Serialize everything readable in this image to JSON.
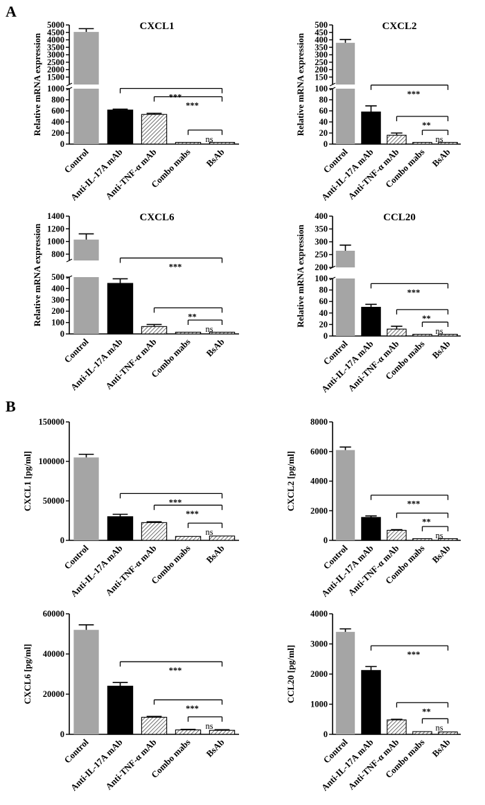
{
  "panel_labels": [
    "A",
    "B"
  ],
  "colors": {
    "Control": "#a5a5a5",
    "Anti-IL-17A mAb": "#000000",
    "Anti-TNF-α mAb": "hatch",
    "Combo mabs": "hatch",
    "BsAb": "hatch"
  },
  "chart_data": [
    {
      "type": "bar",
      "panel": "A",
      "title": "CXCL1",
      "categories": [
        "Control",
        "Anti-IL-17A mAb",
        "Anti-TNF-α mAb",
        "Combo mabs",
        "BsAb"
      ],
      "values": [
        4530,
        615,
        535,
        25,
        22
      ],
      "errors": [
        220,
        15,
        20,
        3,
        3
      ],
      "ylabel": "Relative mRNA expression",
      "y_axis_break": true,
      "lower_range": [
        0,
        1000
      ],
      "lower_ticks": [
        0,
        200,
        400,
        600,
        800,
        1000
      ],
      "upper_range": [
        1000,
        5000
      ],
      "upper_ticks": [
        1000,
        1500,
        2000,
        2500,
        3000,
        3500,
        4000,
        4500,
        5000
      ],
      "significance": [
        {
          "from": "Anti-IL-17A mAb",
          "to": "BsAb",
          "label": "***"
        },
        {
          "from": "Anti-TNF-α mAb",
          "to": "BsAb",
          "label": "***"
        },
        {
          "from": "Combo mabs",
          "to": "BsAb",
          "label": "ns"
        }
      ]
    },
    {
      "type": "bar",
      "panel": "A",
      "title": "CXCL2",
      "categories": [
        "Control",
        "Anti-IL-17A mAb",
        "Anti-TNF-α mAb",
        "Combo mabs",
        "BsAb"
      ],
      "values": [
        380,
        58,
        16,
        2,
        2
      ],
      "errors": [
        22,
        11,
        4,
        0.5,
        0.5
      ],
      "ylabel": "Relative mRNA expression",
      "y_axis_break": true,
      "lower_range": [
        0,
        100
      ],
      "lower_ticks": [
        0,
        20,
        40,
        60,
        80,
        100
      ],
      "upper_range": [
        100,
        500
      ],
      "upper_ticks": [
        100,
        150,
        200,
        250,
        300,
        350,
        400,
        450,
        500
      ],
      "significance": [
        {
          "from": "Anti-IL-17A mAb",
          "to": "BsAb",
          "label": "***"
        },
        {
          "from": "Anti-TNF-α mAb",
          "to": "BsAb",
          "label": "**"
        },
        {
          "from": "Combo mabs",
          "to": "BsAb",
          "label": "ns"
        }
      ]
    },
    {
      "type": "bar",
      "panel": "A",
      "title": "CXCL6",
      "categories": [
        "Control",
        "Anti-IL-17A mAb",
        "Anti-TNF-α mAb",
        "Combo mabs",
        "BsAb"
      ],
      "values": [
        1030,
        445,
        65,
        4,
        4
      ],
      "errors": [
        90,
        40,
        18,
        1,
        1
      ],
      "ylabel": "Relative mRNA expression",
      "y_axis_break": true,
      "lower_range": [
        0,
        500
      ],
      "lower_ticks": [
        0,
        100,
        200,
        300,
        400,
        500
      ],
      "upper_range": [
        700,
        1400
      ],
      "upper_ticks": [
        800,
        1000,
        1200,
        1400
      ],
      "significance": [
        {
          "from": "Anti-IL-17A mAb",
          "to": "BsAb",
          "label": "***"
        },
        {
          "from": "Anti-TNF-α mAb",
          "to": "BsAb",
          "label": "**"
        },
        {
          "from": "Combo mabs",
          "to": "BsAb",
          "label": "ns"
        }
      ]
    },
    {
      "type": "bar",
      "panel": "A",
      "title": "CCL20",
      "categories": [
        "Control",
        "Anti-IL-17A mAb",
        "Anti-TNF-α mAb",
        "Combo mabs",
        "BsAb"
      ],
      "values": [
        265,
        50,
        12,
        2,
        2
      ],
      "errors": [
        22,
        5,
        5,
        0.5,
        0.5
      ],
      "ylabel": "Relative mRNA expression",
      "y_axis_break": true,
      "lower_range": [
        0,
        100
      ],
      "lower_ticks": [
        0,
        20,
        40,
        60,
        80,
        100
      ],
      "upper_range": [
        200,
        400
      ],
      "upper_ticks": [
        200,
        250,
        300,
        350,
        400
      ],
      "significance": [
        {
          "from": "Anti-IL-17A mAb",
          "to": "BsAb",
          "label": "***"
        },
        {
          "from": "Anti-TNF-α mAb",
          "to": "BsAb",
          "label": "**"
        },
        {
          "from": "Combo mabs",
          "to": "BsAb",
          "label": "ns"
        }
      ]
    },
    {
      "type": "bar",
      "panel": "B",
      "title": "",
      "categories": [
        "Control",
        "Anti-IL-17A mAb",
        "Anti-TNF-α mAb",
        "Combo mabs",
        "BsAb"
      ],
      "values": [
        105000,
        30000,
        22500,
        5000,
        5500
      ],
      "errors": [
        4000,
        3000,
        1000,
        500,
        500
      ],
      "ylabel": "CXCL1 [pg/ml]",
      "ylim": [
        0,
        150000
      ],
      "yticks": [
        0,
        50000,
        100000,
        150000
      ],
      "significance": [
        {
          "from": "Anti-IL-17A mAb",
          "to": "BsAb",
          "label": "***"
        },
        {
          "from": "Anti-TNF-α mAb",
          "to": "BsAb",
          "label": "***"
        },
        {
          "from": "Combo mabs",
          "to": "BsAb",
          "label": "ns"
        }
      ]
    },
    {
      "type": "bar",
      "panel": "B",
      "title": "",
      "categories": [
        "Control",
        "Anti-IL-17A mAb",
        "Anti-TNF-α mAb",
        "Combo mabs",
        "BsAb"
      ],
      "values": [
        6100,
        1550,
        680,
        40,
        40
      ],
      "errors": [
        200,
        100,
        40,
        10,
        10
      ],
      "ylabel": "CXCL2 [pg/ml]",
      "ylim": [
        0,
        8000
      ],
      "yticks": [
        0,
        2000,
        4000,
        6000,
        8000
      ],
      "significance": [
        {
          "from": "Anti-IL-17A mAb",
          "to": "BsAb",
          "label": "***"
        },
        {
          "from": "Anti-TNF-α mAb",
          "to": "BsAb",
          "label": "**"
        },
        {
          "from": "Combo mabs",
          "to": "BsAb",
          "label": "ns"
        }
      ]
    },
    {
      "type": "bar",
      "panel": "B",
      "title": "",
      "categories": [
        "Control",
        "Anti-IL-17A mAb",
        "Anti-TNF-α mAb",
        "Combo mabs",
        "BsAb"
      ],
      "values": [
        52000,
        24000,
        8500,
        2200,
        2000
      ],
      "errors": [
        2500,
        1800,
        400,
        300,
        300
      ],
      "ylabel": "CXCL6 [pg/ml]",
      "ylim": [
        0,
        60000
      ],
      "yticks": [
        0,
        20000,
        40000,
        60000
      ],
      "significance": [
        {
          "from": "Anti-IL-17A mAb",
          "to": "BsAb",
          "label": "***"
        },
        {
          "from": "Anti-TNF-α mAb",
          "to": "BsAb",
          "label": "***"
        },
        {
          "from": "Combo mabs",
          "to": "BsAb",
          "label": "ns"
        }
      ]
    },
    {
      "type": "bar",
      "panel": "B",
      "title": "",
      "categories": [
        "Control",
        "Anti-IL-17A mAb",
        "Anti-TNF-α mAb",
        "Combo mabs",
        "BsAb"
      ],
      "values": [
        3400,
        2120,
        480,
        90,
        80
      ],
      "errors": [
        100,
        130,
        20,
        15,
        15
      ],
      "ylabel": "CCL20 [pg/ml]",
      "ylim": [
        0,
        4000
      ],
      "yticks": [
        0,
        1000,
        2000,
        3000,
        4000
      ],
      "significance": [
        {
          "from": "Anti-IL-17A mAb",
          "to": "BsAb",
          "label": "***"
        },
        {
          "from": "Anti-TNF-α mAb",
          "to": "BsAb",
          "label": "**"
        },
        {
          "from": "Combo mabs",
          "to": "BsAb",
          "label": "ns"
        }
      ]
    }
  ]
}
